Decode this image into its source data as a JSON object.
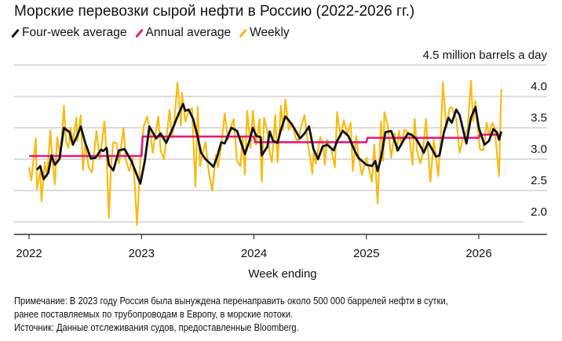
{
  "title": "Морские перевозки сырой нефти в Россию (2022-2026 гг.)",
  "legend": [
    {
      "label": "Four-week average",
      "color": "#111111"
    },
    {
      "label": "Annual average",
      "color": "#e6197e"
    },
    {
      "label": "Weekly",
      "color": "#f7bc12"
    }
  ],
  "notes": {
    "line1": "Примечание: В 2023 году Россия была вынуждена перенаправить около 500 000 баррелей нефти в сутки,",
    "line2": "ранее поставляемых по трубопроводам в Европу, в морские потоки.",
    "source": "Источник: Данные отслеживания судов, предоставленные Bloomberg."
  },
  "chart_data": {
    "type": "line",
    "title": "Морские перевозки сырой нефти в Россию (2022-2026 гг.)",
    "xlabel": "Week ending",
    "ylabel": "4.5 million barrels a day",
    "x_ticks": [
      "2022",
      "2023",
      "2024",
      "2025",
      "2026"
    ],
    "y_ticks": [
      "4.5 million barrels a day",
      "4.0",
      "3.5",
      "3.0",
      "2.5",
      "2.0"
    ],
    "y_tick_values": [
      4.5,
      4.0,
      3.5,
      3.0,
      2.5,
      2.0
    ],
    "ylim": [
      1.8,
      4.5
    ],
    "xlim": [
      2022,
      2026.55
    ],
    "grid": true,
    "legend_position": "top-left",
    "series": [
      {
        "name": "Weekly",
        "color": "#f7bc12",
        "points": [
          [
            2022.0,
            2.87
          ],
          [
            2022.02,
            2.66
          ],
          [
            2022.06,
            3.33
          ],
          [
            2022.07,
            2.52
          ],
          [
            2022.1,
            2.81
          ],
          [
            2022.11,
            2.33
          ],
          [
            2022.14,
            2.95
          ],
          [
            2022.16,
            2.72
          ],
          [
            2022.19,
            3.45
          ],
          [
            2022.21,
            2.93
          ],
          [
            2022.23,
            2.6
          ],
          [
            2022.25,
            3.35
          ],
          [
            2022.28,
            3.02
          ],
          [
            2022.31,
            3.85
          ],
          [
            2022.33,
            3.27
          ],
          [
            2022.35,
            3.18
          ],
          [
            2022.37,
            3.5
          ],
          [
            2022.39,
            3.27
          ],
          [
            2022.42,
            3.66
          ],
          [
            2022.43,
            3.29
          ],
          [
            2022.46,
            3.7
          ],
          [
            2022.48,
            2.83
          ],
          [
            2022.5,
            3.27
          ],
          [
            2022.53,
            2.87
          ],
          [
            2022.56,
            2.79
          ],
          [
            2022.6,
            3.45
          ],
          [
            2022.63,
            3.0
          ],
          [
            2022.64,
            3.16
          ],
          [
            2022.67,
            3.6
          ],
          [
            2022.69,
            3.1
          ],
          [
            2022.71,
            2.06
          ],
          [
            2022.73,
            2.93
          ],
          [
            2022.75,
            3.27
          ],
          [
            2022.78,
            3.25
          ],
          [
            2022.8,
            2.93
          ],
          [
            2022.84,
            3.5
          ],
          [
            2022.86,
            3.0
          ],
          [
            2022.89,
            2.81
          ],
          [
            2022.92,
            3.02
          ],
          [
            2022.94,
            2.6
          ],
          [
            2022.96,
            1.95
          ],
          [
            2022.99,
            2.97
          ],
          [
            2023.02,
            3.52
          ],
          [
            2023.05,
            3.68
          ],
          [
            2023.08,
            3.39
          ],
          [
            2023.1,
            3.1
          ],
          [
            2023.12,
            3.35
          ],
          [
            2023.15,
            3.68
          ],
          [
            2023.17,
            3.14
          ],
          [
            2023.2,
            3.0
          ],
          [
            2023.22,
            3.31
          ],
          [
            2023.25,
            3.79
          ],
          [
            2023.27,
            3.35
          ],
          [
            2023.29,
            3.56
          ],
          [
            2023.32,
            4.22
          ],
          [
            2023.35,
            3.54
          ],
          [
            2023.36,
            4.06
          ],
          [
            2023.39,
            3.6
          ],
          [
            2023.42,
            3.77
          ],
          [
            2023.45,
            3.81
          ],
          [
            2023.48,
            2.56
          ],
          [
            2023.5,
            3.83
          ],
          [
            2023.52,
            2.89
          ],
          [
            2023.54,
            3.06
          ],
          [
            2023.57,
            3.27
          ],
          [
            2023.6,
            2.77
          ],
          [
            2023.63,
            2.5
          ],
          [
            2023.66,
            3.06
          ],
          [
            2023.68,
            2.87
          ],
          [
            2023.71,
            3.23
          ],
          [
            2023.74,
            3.73
          ],
          [
            2023.77,
            3.31
          ],
          [
            2023.8,
            3.54
          ],
          [
            2023.82,
            3.64
          ],
          [
            2023.85,
            2.97
          ],
          [
            2023.88,
            2.89
          ],
          [
            2023.9,
            3.35
          ],
          [
            2023.92,
            2.75
          ],
          [
            2023.94,
            3.77
          ],
          [
            2023.97,
            3.18
          ],
          [
            2023.99,
            3.77
          ],
          [
            2024.02,
            3.23
          ],
          [
            2024.05,
            3.64
          ],
          [
            2024.07,
            2.64
          ],
          [
            2024.09,
            3.66
          ],
          [
            2024.12,
            3.43
          ],
          [
            2024.14,
            3.1
          ],
          [
            2024.16,
            2.95
          ],
          [
            2024.19,
            3.7
          ],
          [
            2024.21,
            2.95
          ],
          [
            2024.24,
            3.85
          ],
          [
            2024.26,
            3.47
          ],
          [
            2024.28,
            3.95
          ],
          [
            2024.31,
            3.47
          ],
          [
            2024.34,
            3.58
          ],
          [
            2024.37,
            3.35
          ],
          [
            2024.39,
            3.27
          ],
          [
            2024.42,
            3.52
          ],
          [
            2024.45,
            3.7
          ],
          [
            2024.48,
            3.25
          ],
          [
            2024.52,
            2.77
          ],
          [
            2024.53,
            3.1
          ],
          [
            2024.55,
            2.93
          ],
          [
            2024.59,
            3.35
          ],
          [
            2024.62,
            3.18
          ],
          [
            2024.63,
            2.91
          ],
          [
            2024.65,
            3.31
          ],
          [
            2024.69,
            3.14
          ],
          [
            2024.72,
            2.87
          ],
          [
            2024.74,
            3.75
          ],
          [
            2024.77,
            3.35
          ],
          [
            2024.8,
            3.62
          ],
          [
            2024.83,
            3.39
          ],
          [
            2024.86,
            3.58
          ],
          [
            2024.88,
            2.81
          ],
          [
            2024.91,
            3.37
          ],
          [
            2024.93,
            3.06
          ],
          [
            2024.96,
            2.75
          ],
          [
            2025.0,
            3.02
          ],
          [
            2025.05,
            2.64
          ],
          [
            2025.07,
            3.23
          ],
          [
            2025.1,
            2.29
          ],
          [
            2025.13,
            3.6
          ],
          [
            2025.15,
            2.97
          ],
          [
            2025.16,
            3.75
          ],
          [
            2025.19,
            3.54
          ],
          [
            2025.22,
            3.02
          ],
          [
            2025.25,
            3.41
          ],
          [
            2025.27,
            3.12
          ],
          [
            2025.29,
            3.45
          ],
          [
            2025.31,
            3.23
          ],
          [
            2025.34,
            3.47
          ],
          [
            2025.38,
            3.41
          ],
          [
            2025.41,
            2.91
          ],
          [
            2025.43,
            3.64
          ],
          [
            2025.45,
            3.14
          ],
          [
            2025.48,
            2.93
          ],
          [
            2025.5,
            3.08
          ],
          [
            2025.53,
            3.64
          ],
          [
            2025.55,
            3.1
          ],
          [
            2025.57,
            2.64
          ],
          [
            2025.6,
            3.31
          ],
          [
            2025.64,
            2.73
          ],
          [
            2025.66,
            3.31
          ],
          [
            2025.68,
            4.22
          ],
          [
            2025.71,
            3.5
          ],
          [
            2025.74,
            3.81
          ],
          [
            2025.76,
            3.83
          ],
          [
            2025.8,
            3.64
          ],
          [
            2025.83,
            3.1
          ],
          [
            2025.86,
            3.33
          ],
          [
            2025.9,
            3.47
          ],
          [
            2025.93,
            4.25
          ],
          [
            2025.95,
            3.6
          ],
          [
            2025.97,
            3.93
          ],
          [
            2025.99,
            3.52
          ],
          [
            2026.01,
            3.16
          ],
          [
            2026.04,
            3.14
          ],
          [
            2026.07,
            3.58
          ],
          [
            2026.09,
            3.39
          ],
          [
            2026.12,
            3.58
          ],
          [
            2026.14,
            3.5
          ],
          [
            2026.18,
            2.73
          ],
          [
            2026.2,
            4.12
          ]
        ]
      },
      {
        "name": "Annual average",
        "color": "#e6197e",
        "points": [
          [
            2022.0,
            3.05
          ],
          [
            2023.0,
            3.05
          ],
          [
            2023.01,
            3.36
          ],
          [
            2024.0,
            3.36
          ],
          [
            2024.01,
            3.27
          ],
          [
            2025.0,
            3.27
          ],
          [
            2025.01,
            3.34
          ],
          [
            2026.0,
            3.34
          ],
          [
            2026.01,
            3.39
          ],
          [
            2026.2,
            3.39
          ]
        ]
      },
      {
        "name": "Four-week average",
        "color": "#111111",
        "points": [
          [
            2022.07,
            2.83
          ],
          [
            2022.1,
            2.89
          ],
          [
            2022.13,
            2.68
          ],
          [
            2022.17,
            2.78
          ],
          [
            2022.2,
            3.06
          ],
          [
            2022.23,
            2.91
          ],
          [
            2022.27,
            3.0
          ],
          [
            2022.31,
            3.5
          ],
          [
            2022.36,
            3.43
          ],
          [
            2022.39,
            3.23
          ],
          [
            2022.43,
            3.38
          ],
          [
            2022.46,
            3.52
          ],
          [
            2022.5,
            3.26
          ],
          [
            2022.55,
            3.01
          ],
          [
            2022.59,
            3.02
          ],
          [
            2022.64,
            3.15
          ],
          [
            2022.66,
            3.13
          ],
          [
            2022.69,
            3.18
          ],
          [
            2022.71,
            2.91
          ],
          [
            2022.75,
            2.82
          ],
          [
            2022.8,
            3.14
          ],
          [
            2022.85,
            3.16
          ],
          [
            2022.91,
            2.97
          ],
          [
            2022.95,
            2.79
          ],
          [
            2022.99,
            2.61
          ],
          [
            2023.03,
            2.97
          ],
          [
            2023.07,
            3.52
          ],
          [
            2023.13,
            3.33
          ],
          [
            2023.17,
            3.41
          ],
          [
            2023.22,
            3.26
          ],
          [
            2023.28,
            3.5
          ],
          [
            2023.33,
            3.72
          ],
          [
            2023.37,
            3.88
          ],
          [
            2023.39,
            3.77
          ],
          [
            2023.42,
            3.79
          ],
          [
            2023.46,
            3.64
          ],
          [
            2023.5,
            3.35
          ],
          [
            2023.53,
            3.1
          ],
          [
            2023.57,
            3.0
          ],
          [
            2023.64,
            2.88
          ],
          [
            2023.67,
            3.02
          ],
          [
            2023.71,
            3.27
          ],
          [
            2023.74,
            3.25
          ],
          [
            2023.8,
            3.5
          ],
          [
            2023.85,
            3.45
          ],
          [
            2023.92,
            3.08
          ],
          [
            2023.96,
            3.29
          ],
          [
            2023.99,
            3.5
          ],
          [
            2024.02,
            3.37
          ],
          [
            2024.06,
            3.35
          ],
          [
            2024.07,
            3.06
          ],
          [
            2024.12,
            3.2
          ],
          [
            2024.14,
            3.44
          ],
          [
            2024.17,
            3.29
          ],
          [
            2024.21,
            3.26
          ],
          [
            2024.24,
            3.47
          ],
          [
            2024.28,
            3.68
          ],
          [
            2024.31,
            3.62
          ],
          [
            2024.35,
            3.52
          ],
          [
            2024.41,
            3.33
          ],
          [
            2024.45,
            3.41
          ],
          [
            2024.49,
            3.52
          ],
          [
            2024.53,
            3.16
          ],
          [
            2024.57,
            3.0
          ],
          [
            2024.61,
            3.2
          ],
          [
            2024.65,
            3.23
          ],
          [
            2024.71,
            3.14
          ],
          [
            2024.74,
            3.29
          ],
          [
            2024.79,
            3.45
          ],
          [
            2024.84,
            3.37
          ],
          [
            2024.9,
            3.12
          ],
          [
            2024.93,
            3.02
          ],
          [
            2025.0,
            2.91
          ],
          [
            2025.05,
            2.89
          ],
          [
            2025.08,
            2.97
          ],
          [
            2025.1,
            2.81
          ],
          [
            2025.13,
            3.02
          ],
          [
            2025.17,
            3.43
          ],
          [
            2025.22,
            3.45
          ],
          [
            2025.28,
            3.14
          ],
          [
            2025.34,
            3.33
          ],
          [
            2025.37,
            3.41
          ],
          [
            2025.4,
            3.39
          ],
          [
            2025.44,
            3.33
          ],
          [
            2025.49,
            3.18
          ],
          [
            2025.51,
            3.1
          ],
          [
            2025.55,
            3.27
          ],
          [
            2025.62,
            3.04
          ],
          [
            2025.65,
            3.06
          ],
          [
            2025.69,
            3.43
          ],
          [
            2025.73,
            3.66
          ],
          [
            2025.76,
            3.58
          ],
          [
            2025.8,
            3.79
          ],
          [
            2025.83,
            3.7
          ],
          [
            2025.89,
            3.25
          ],
          [
            2025.93,
            3.66
          ],
          [
            2025.97,
            3.83
          ],
          [
            2026.0,
            3.5
          ],
          [
            2026.05,
            3.23
          ],
          [
            2026.09,
            3.29
          ],
          [
            2026.13,
            3.48
          ],
          [
            2026.16,
            3.43
          ],
          [
            2026.18,
            3.31
          ],
          [
            2026.2,
            3.44
          ]
        ]
      }
    ]
  }
}
